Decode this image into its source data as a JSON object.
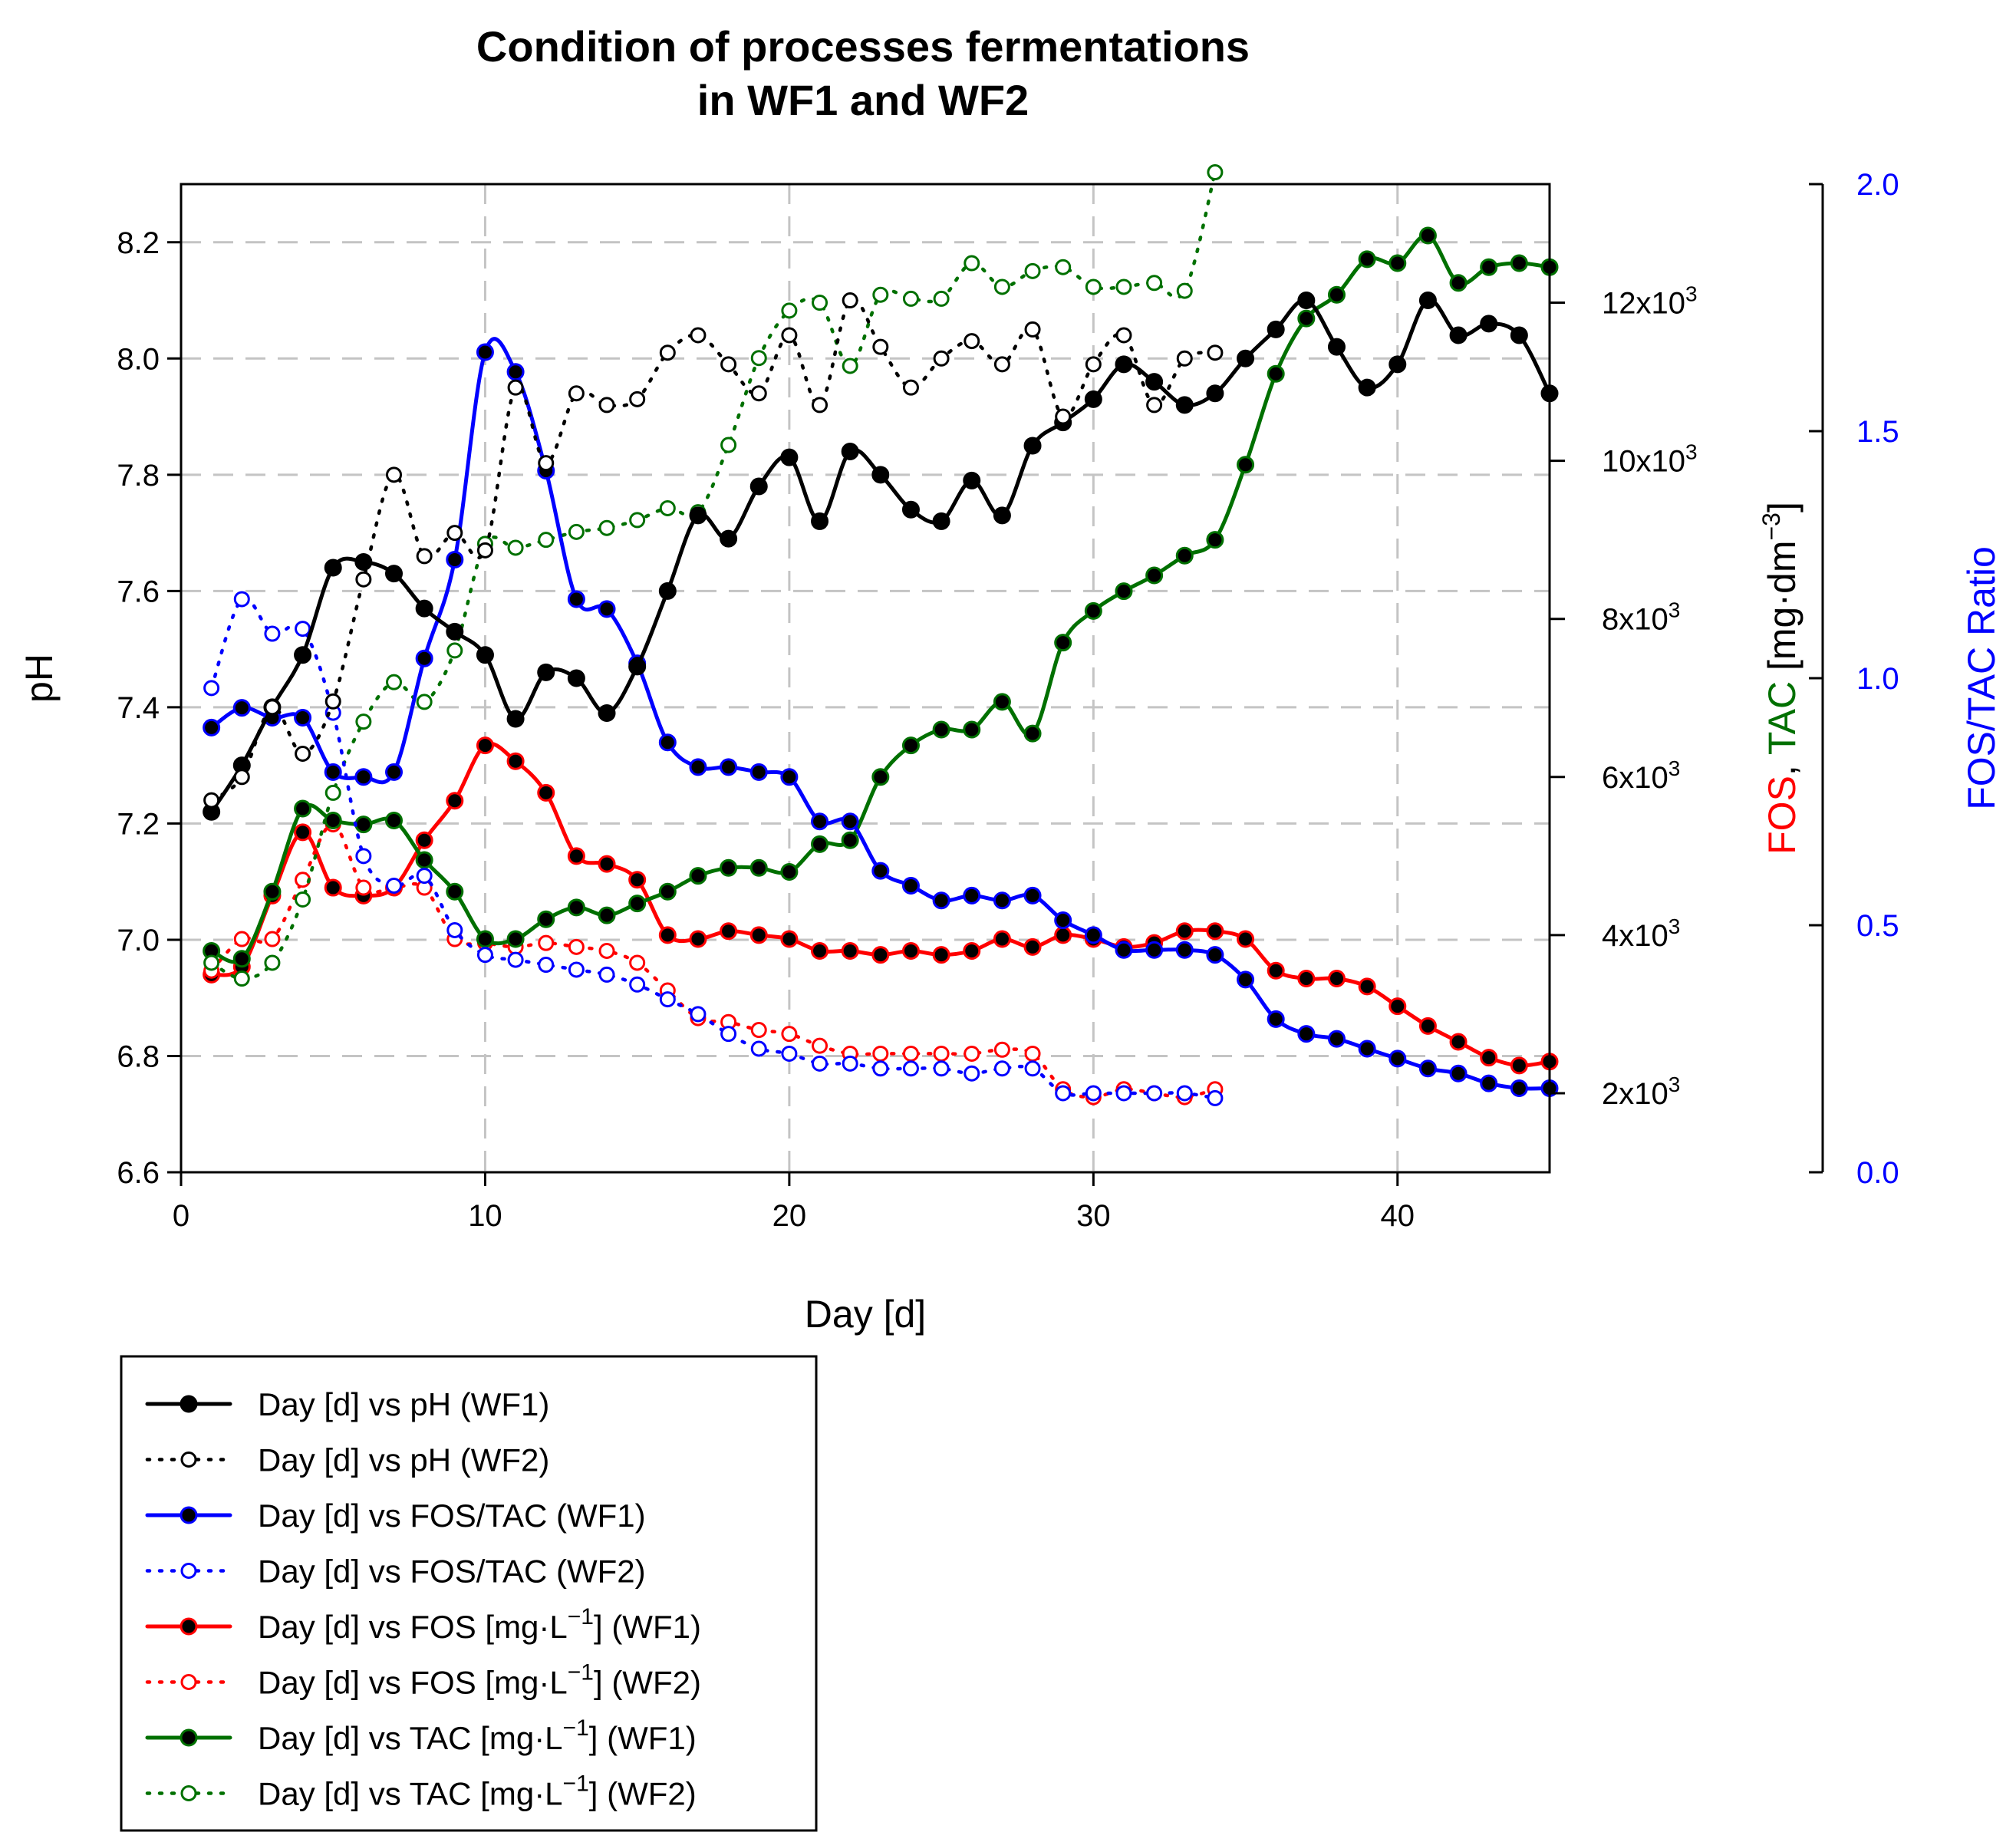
{
  "chart_data": {
    "type": "line",
    "title_lines": [
      "Condition of processes fermentations",
      "in WF1 and WF2"
    ],
    "xlabel": "Day [d]",
    "ylabel_left": "pH",
    "ylabel_right_parts": [
      {
        "text": "FOS",
        "color": "#ff0000"
      },
      {
        "text": ", ",
        "color": "#000000"
      },
      {
        "text": "TAC",
        "color": "#007000"
      },
      {
        "text": " [mg·dm",
        "color": "#000000"
      },
      {
        "text": "−3",
        "color": "#000000",
        "sup": true
      },
      {
        "text": "]",
        "color": "#000000"
      }
    ],
    "ylabel_right2": "FOS/TAC Ratio",
    "xlim": [
      0,
      45
    ],
    "xticks": [
      "0",
      "10",
      "20",
      "30",
      "40"
    ],
    "ylim_left": [
      6.6,
      8.3
    ],
    "yticks_left": [
      "6.6",
      "6.8",
      "7.0",
      "7.2",
      "7.4",
      "7.6",
      "7.8",
      "8.0",
      "8.2"
    ],
    "ylim_right": [
      1000,
      13500
    ],
    "yticks_right": [
      {
        "value": 2000,
        "base": "2x10",
        "exp": "3"
      },
      {
        "value": 4000,
        "base": "4x10",
        "exp": "3"
      },
      {
        "value": 6000,
        "base": "6x10",
        "exp": "3"
      },
      {
        "value": 8000,
        "base": "8x10",
        "exp": "3"
      },
      {
        "value": 10000,
        "base": "10x10",
        "exp": "3"
      },
      {
        "value": 12000,
        "base": "12x10",
        "exp": "3"
      }
    ],
    "ylim_right2": [
      0.0,
      2.0
    ],
    "yticks_right2": [
      "0.0",
      "0.5",
      "1.0",
      "1.5",
      "2.0"
    ],
    "grid": true,
    "legend_position": "bottom-left",
    "series": [
      {
        "name": "Day [d] vs pH (WF1)",
        "label_main": "Day [d] vs pH (WF1)",
        "axis": "left",
        "color": "#000000",
        "style": "solid",
        "marker": "filled",
        "x": [
          1,
          2,
          3,
          4,
          5,
          6,
          7,
          8,
          9,
          10,
          11,
          12,
          13,
          14,
          15,
          16,
          17,
          18,
          19,
          20,
          21,
          22,
          23,
          24,
          25,
          26,
          27,
          28,
          29,
          30,
          31,
          32,
          33,
          34,
          35,
          36,
          37,
          38,
          39,
          40,
          41,
          42,
          43,
          44,
          45
        ],
        "values": [
          7.22,
          7.3,
          7.4,
          7.49,
          7.64,
          7.65,
          7.63,
          7.57,
          7.53,
          7.49,
          7.38,
          7.46,
          7.45,
          7.39,
          7.47,
          7.6,
          7.73,
          7.69,
          7.78,
          7.83,
          7.72,
          7.84,
          7.8,
          7.74,
          7.72,
          7.79,
          7.73,
          7.85,
          7.89,
          7.93,
          7.99,
          7.96,
          7.92,
          7.94,
          8.0,
          8.05,
          8.1,
          8.02,
          7.95,
          7.99,
          8.1,
          8.04,
          8.06,
          8.04,
          7.94
        ]
      },
      {
        "name": "Day [d] vs pH (WF2)",
        "label_main": "Day [d] vs pH (WF2)",
        "axis": "left",
        "color": "#000000",
        "style": "dotted",
        "marker": "open",
        "x": [
          1,
          2,
          3,
          4,
          5,
          6,
          7,
          8,
          9,
          10,
          11,
          12,
          13,
          14,
          15,
          16,
          17,
          18,
          19,
          20,
          21,
          22,
          23,
          24,
          25,
          26,
          27,
          28,
          29,
          30,
          31,
          32,
          33,
          34
        ],
        "values": [
          7.24,
          7.28,
          7.4,
          7.32,
          7.41,
          7.62,
          7.8,
          7.66,
          7.7,
          7.67,
          7.95,
          7.82,
          7.94,
          7.92,
          7.93,
          8.01,
          8.04,
          7.99,
          7.94,
          8.04,
          7.92,
          8.1,
          8.02,
          7.95,
          8.0,
          8.03,
          7.99,
          8.05,
          7.9,
          7.99,
          8.04,
          7.92,
          8.0,
          8.01
        ]
      },
      {
        "name": "Day [d] vs FOS/TAC (WF1)",
        "label_main": "Day [d] vs FOS/TAC (WF1)",
        "axis": "right2",
        "color": "#0000ff",
        "style": "solid",
        "marker": "filled",
        "x": [
          1,
          2,
          3,
          4,
          5,
          6,
          7,
          8,
          9,
          10,
          11,
          12,
          13,
          14,
          15,
          16,
          17,
          18,
          19,
          20,
          21,
          22,
          23,
          24,
          25,
          26,
          27,
          28,
          29,
          30,
          31,
          32,
          33,
          34,
          35,
          36,
          37,
          38,
          39,
          40,
          41,
          42,
          43,
          44,
          45
        ],
        "values": [
          0.9,
          0.94,
          0.92,
          0.92,
          0.81,
          0.8,
          0.81,
          1.04,
          1.24,
          1.66,
          1.62,
          1.42,
          1.16,
          1.14,
          1.03,
          0.87,
          0.82,
          0.82,
          0.81,
          0.8,
          0.71,
          0.71,
          0.61,
          0.58,
          0.55,
          0.56,
          0.55,
          0.56,
          0.51,
          0.48,
          0.45,
          0.45,
          0.45,
          0.44,
          0.39,
          0.31,
          0.28,
          0.27,
          0.25,
          0.23,
          0.21,
          0.2,
          0.18,
          0.17,
          0.17
        ]
      },
      {
        "name": "Day [d] vs FOS/TAC (WF2)",
        "label_main": "Day [d] vs FOS/TAC (WF2)",
        "axis": "right2",
        "color": "#0000ff",
        "style": "dotted",
        "marker": "open",
        "x": [
          1,
          2,
          3,
          4,
          5,
          6,
          7,
          8,
          9,
          10,
          11,
          12,
          13,
          14,
          15,
          16,
          17,
          18,
          19,
          20,
          21,
          22,
          23,
          24,
          25,
          26,
          27,
          28,
          29,
          30,
          31,
          32,
          33,
          34
        ],
        "values": [
          0.98,
          1.16,
          1.09,
          1.1,
          0.93,
          0.64,
          0.58,
          0.6,
          0.49,
          0.44,
          0.43,
          0.42,
          0.41,
          0.4,
          0.38,
          0.35,
          0.32,
          0.28,
          0.25,
          0.24,
          0.22,
          0.22,
          0.21,
          0.21,
          0.21,
          0.2,
          0.21,
          0.21,
          0.16,
          0.16,
          0.16,
          0.16,
          0.16,
          0.15
        ]
      },
      {
        "name": "Day [d] vs FOS [mg·L−1] (WF1)",
        "label_main": "Day [d] vs FOS [mg·L",
        "label_sup": "−1",
        "label_tail": "] (WF1)",
        "axis": "right",
        "color": "#ff0000",
        "style": "solid",
        "marker": "filled",
        "x": [
          1,
          2,
          3,
          4,
          5,
          6,
          7,
          8,
          9,
          10,
          11,
          12,
          13,
          14,
          15,
          16,
          17,
          18,
          19,
          20,
          21,
          22,
          23,
          24,
          25,
          26,
          27,
          28,
          29,
          30,
          31,
          32,
          33,
          34,
          35,
          36,
          37,
          38,
          39,
          40,
          41,
          42,
          43,
          44,
          45
        ],
        "values": [
          3500,
          3600,
          4500,
          5300,
          4600,
          4500,
          4600,
          5200,
          5700,
          6400,
          6200,
          5800,
          5000,
          4900,
          4700,
          4000,
          3950,
          4050,
          4000,
          3950,
          3800,
          3800,
          3750,
          3800,
          3750,
          3800,
          3950,
          3850,
          4000,
          3950,
          3850,
          3900,
          4050,
          4050,
          3950,
          3550,
          3450,
          3450,
          3350,
          3100,
          2850,
          2650,
          2450,
          2350,
          2400
        ]
      },
      {
        "name": "Day [d] vs FOS [mg·L−1] (WF2)",
        "label_main": "Day [d] vs FOS [mg·L",
        "label_sup": "−1",
        "label_tail": "] (WF2)",
        "axis": "right",
        "color": "#ff0000",
        "style": "dotted",
        "marker": "open",
        "x": [
          1,
          2,
          3,
          4,
          5,
          6,
          7,
          8,
          9,
          10,
          11,
          12,
          13,
          14,
          15,
          16,
          17,
          18,
          19,
          20,
          21,
          22,
          23,
          24,
          25,
          26,
          27,
          28,
          29,
          30,
          31,
          32,
          33,
          34
        ],
        "values": [
          3550,
          3950,
          3950,
          4700,
          5400,
          4600,
          4600,
          4600,
          3950,
          3900,
          3850,
          3900,
          3850,
          3800,
          3650,
          3300,
          2950,
          2900,
          2800,
          2750,
          2600,
          2500,
          2500,
          2500,
          2500,
          2500,
          2550,
          2500,
          2050,
          1950,
          2050,
          2000,
          1950,
          2050
        ]
      },
      {
        "name": "Day [d] vs TAC [mg·L−1] (WF1)",
        "label_main": "Day [d] vs TAC [mg·L",
        "label_sup": "−1",
        "label_tail": "] (WF1)",
        "axis": "right",
        "color": "#007000",
        "style": "solid",
        "marker": "filled",
        "x": [
          1,
          2,
          3,
          4,
          5,
          6,
          7,
          8,
          9,
          10,
          11,
          12,
          13,
          14,
          15,
          16,
          17,
          18,
          19,
          20,
          21,
          22,
          23,
          24,
          25,
          26,
          27,
          28,
          29,
          30,
          31,
          32,
          33,
          34,
          35,
          36,
          37,
          38,
          39,
          40,
          41,
          42,
          43,
          44,
          45
        ],
        "values": [
          3800,
          3700,
          4550,
          5600,
          5450,
          5400,
          5450,
          4950,
          4550,
          3950,
          3950,
          4200,
          4350,
          4250,
          4400,
          4550,
          4750,
          4850,
          4850,
          4800,
          5150,
          5200,
          6000,
          6400,
          6600,
          6600,
          6950,
          6550,
          7700,
          8100,
          8350,
          8550,
          8800,
          9000,
          9950,
          11100,
          11800,
          12100,
          12550,
          12500,
          12850,
          12250,
          12450,
          12500,
          12450
        ]
      },
      {
        "name": "Day [d] vs TAC [mg·L−1] (WF2)",
        "label_main": "Day [d] vs TAC [mg·L",
        "label_sup": "−1",
        "label_tail": "] (WF2)",
        "axis": "right",
        "color": "#007000",
        "style": "dotted",
        "marker": "open",
        "x": [
          1,
          2,
          3,
          4,
          5,
          6,
          7,
          8,
          9,
          10,
          11,
          12,
          13,
          14,
          15,
          16,
          17,
          18,
          19,
          20,
          21,
          22,
          23,
          24,
          25,
          26,
          27,
          28,
          29,
          30,
          31,
          32,
          33,
          34
        ],
        "values": [
          3650,
          3450,
          3650,
          4450,
          5800,
          6700,
          7200,
          6950,
          7600,
          8950,
          8900,
          9000,
          9100,
          9150,
          9250,
          9400,
          9350,
          10200,
          11300,
          11900,
          12000,
          11200,
          12100,
          12050,
          12050,
          12500,
          12200,
          12400,
          12450,
          12200,
          12200,
          12250,
          12150,
          13650
        ]
      }
    ]
  }
}
